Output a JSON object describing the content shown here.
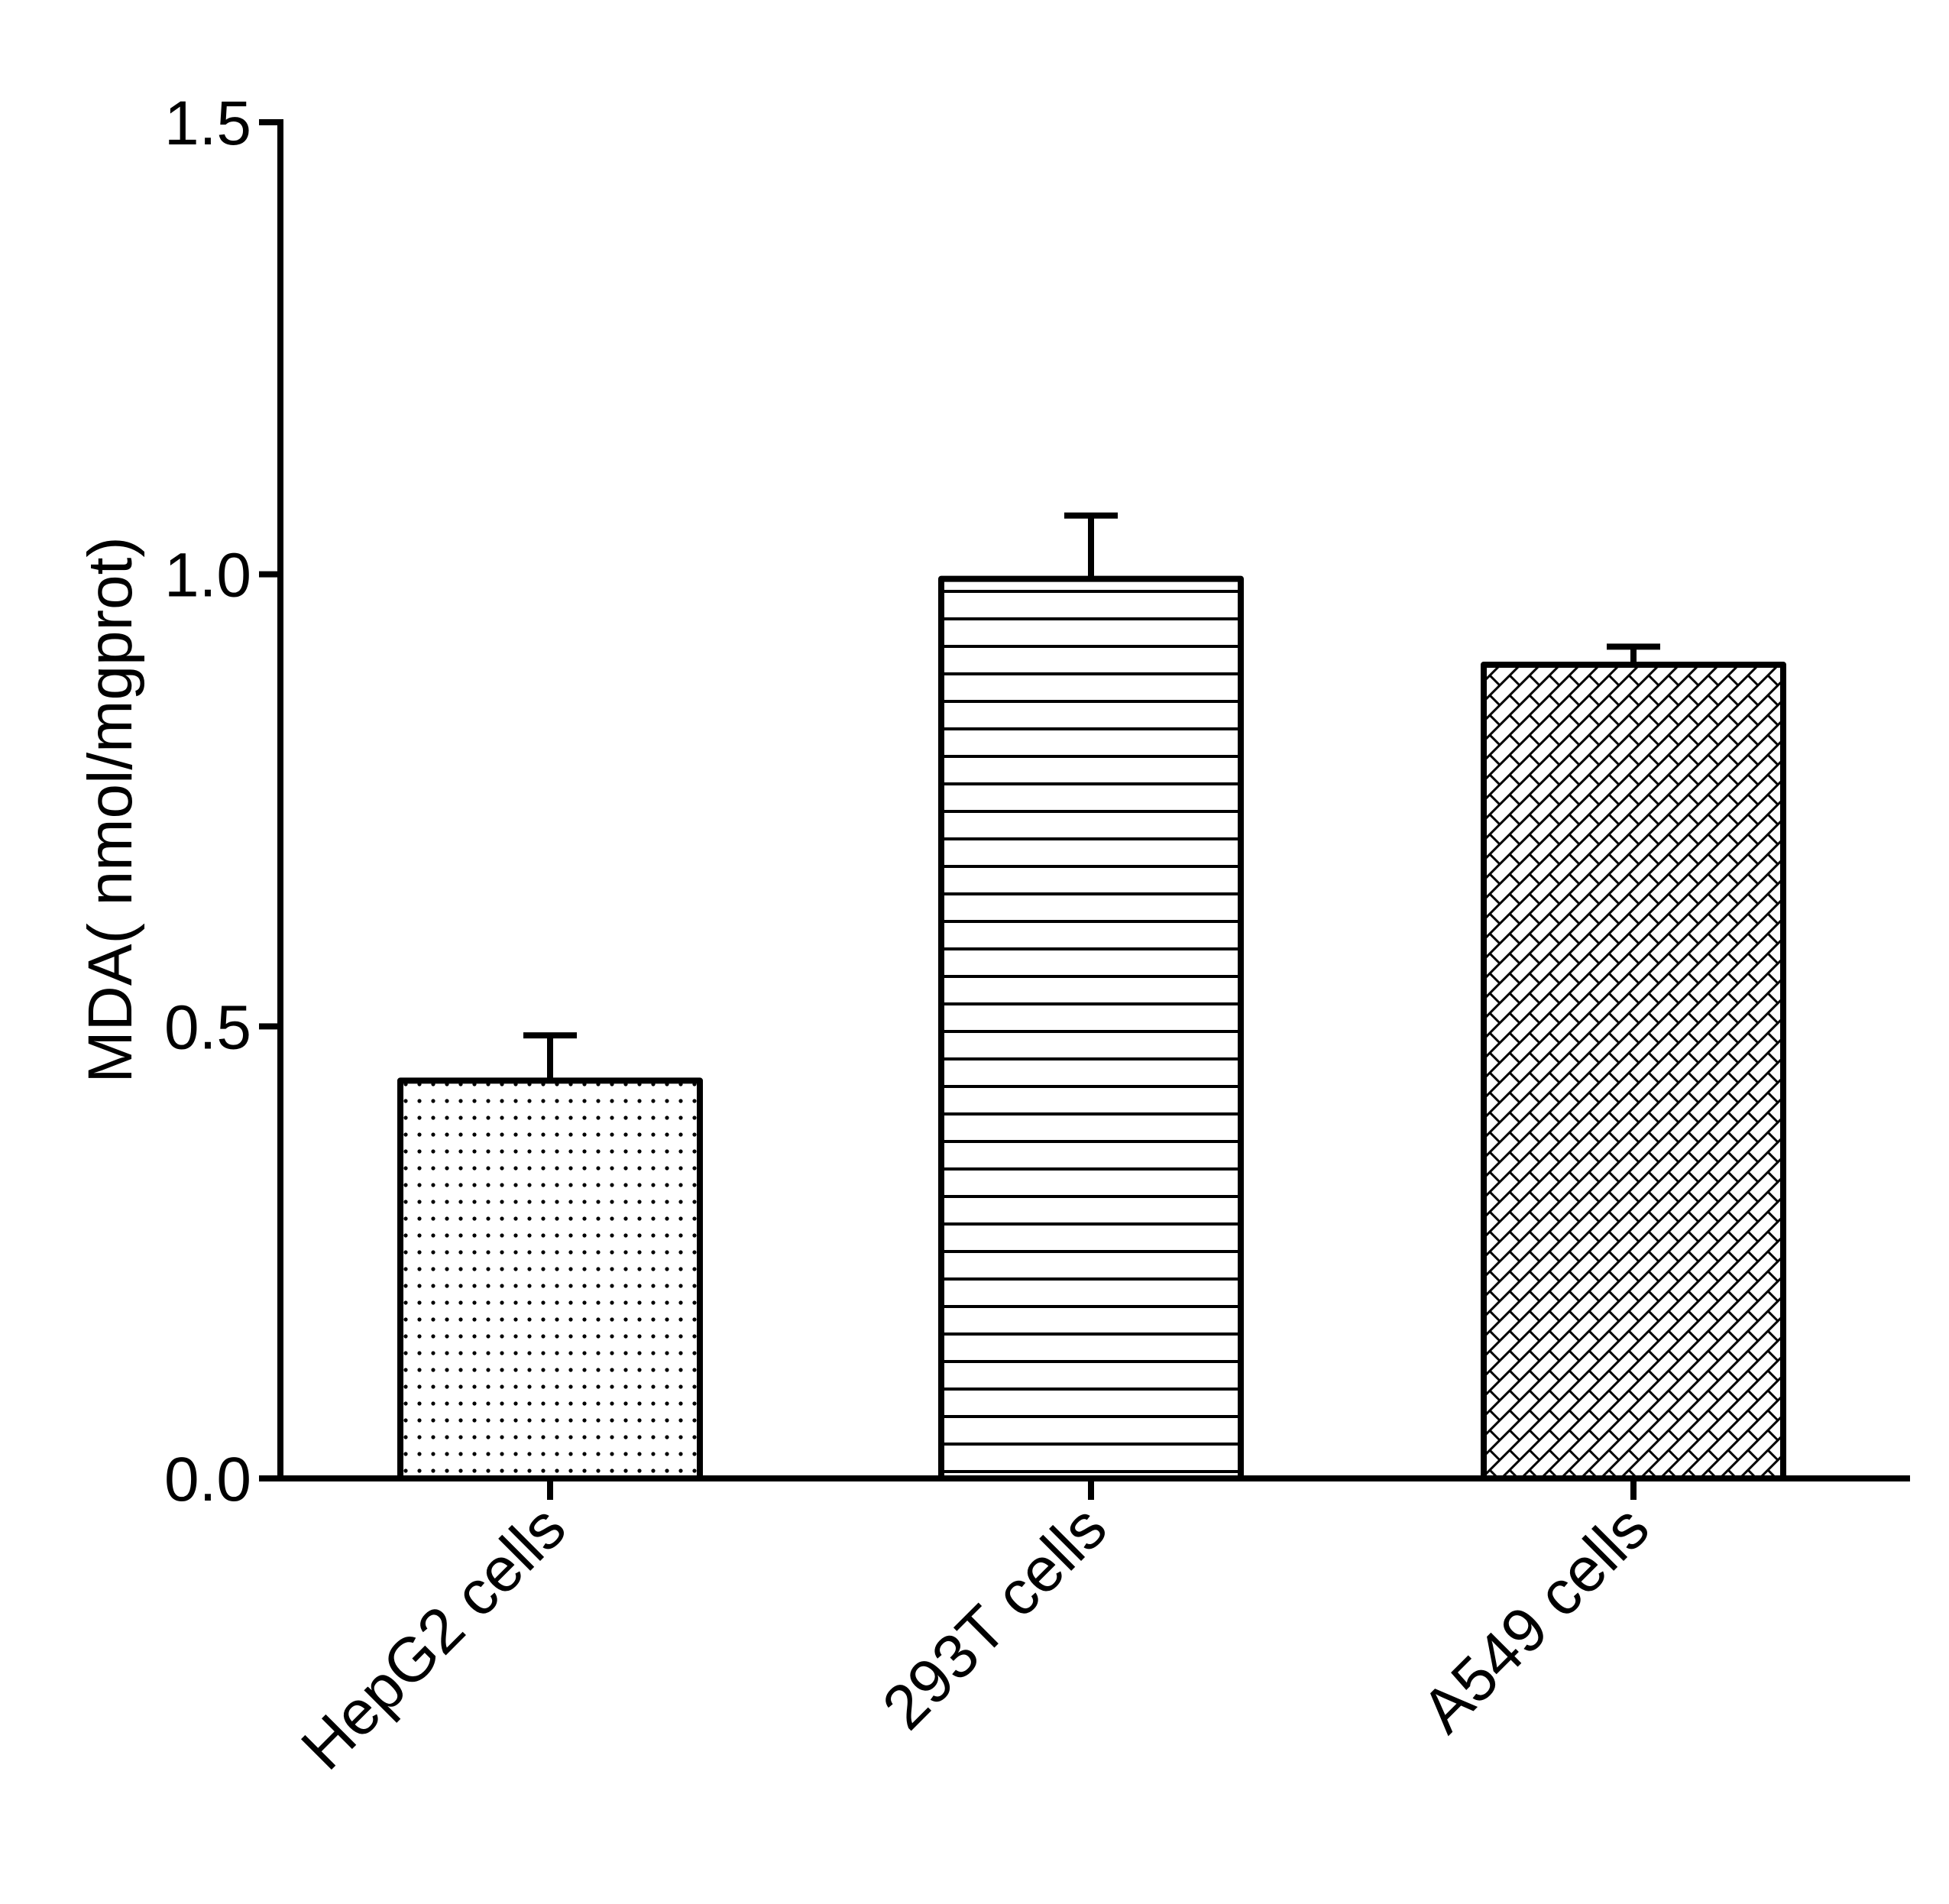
{
  "chart_data": {
    "type": "bar",
    "title": "",
    "xlabel": "",
    "ylabel": "MDA( nmol/mgprot)",
    "ylim": [
      0,
      1.5
    ],
    "yticks": [
      0.0,
      0.5,
      1.0,
      1.5
    ],
    "ytick_labels": [
      "0.0",
      "0.5",
      "1.0",
      "1.5"
    ],
    "categories": [
      "HepG2 cells",
      "293T cells",
      "A549 cells"
    ],
    "values": [
      0.44,
      0.995,
      0.9
    ],
    "errors": [
      0.05,
      0.07,
      0.02
    ],
    "fill_patterns": [
      "dots",
      "horizontal-lines",
      "crosshatch"
    ],
    "grid": false,
    "colors": {
      "stroke": "#000000",
      "fill": "#ffffff"
    }
  }
}
